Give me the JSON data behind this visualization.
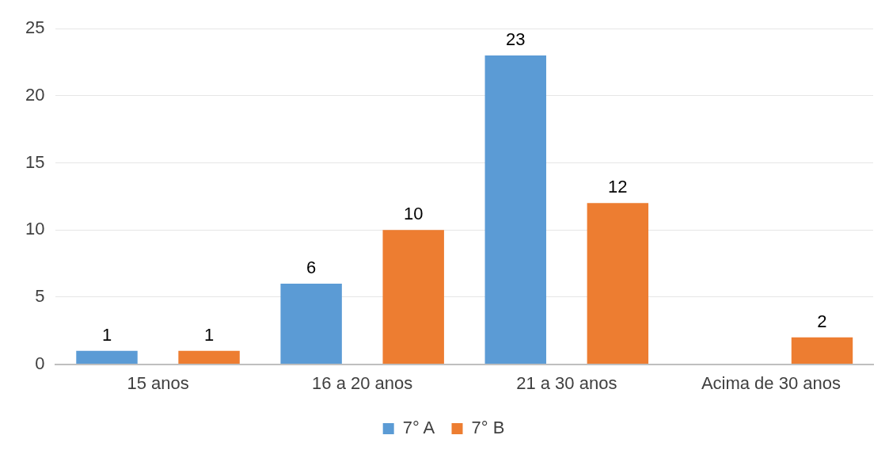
{
  "chart_data": {
    "type": "bar",
    "categories": [
      "15 anos",
      "16 a 20 anos",
      "21 a 30 anos",
      "Acima de 30 anos"
    ],
    "series": [
      {
        "name": "7° A",
        "color": "#5b9bd5",
        "values": [
          1,
          6,
          23,
          null
        ]
      },
      {
        "name": "7° B",
        "color": "#ed7d31",
        "values": [
          1,
          10,
          12,
          2
        ]
      }
    ],
    "ylim": [
      0,
      25
    ],
    "yticks": [
      0,
      5,
      10,
      15,
      20,
      25
    ],
    "grid": "y",
    "legend": "bottom",
    "data_labels": true
  }
}
